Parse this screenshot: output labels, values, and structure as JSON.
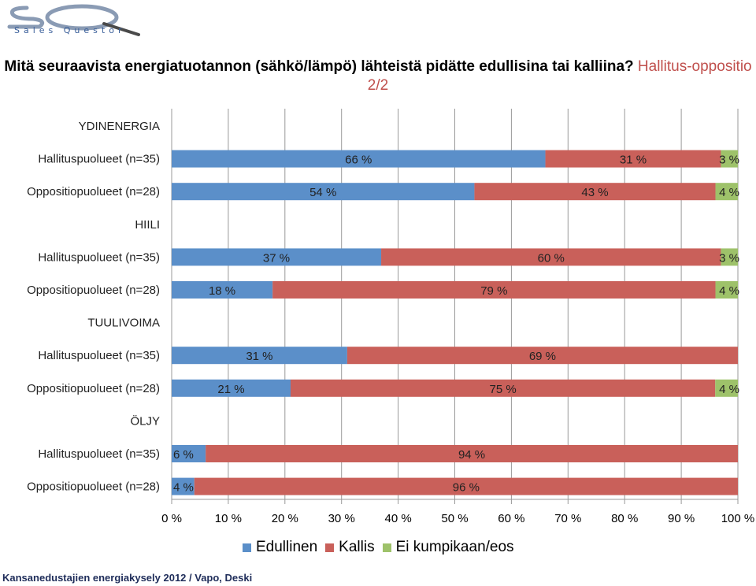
{
  "brand": {
    "logo_text": "SQ",
    "logo_subtitle": "Sales Questor"
  },
  "title": {
    "part1": "Mitä seuraavista energiatuotannon (sähkö/lämpö) lähteistä pidätte edullisina tai kalliina?",
    "part2": "Hallitus-oppositio 2/2"
  },
  "colors": {
    "Edullinen": "#5b8fc9",
    "Kallis": "#c9605a",
    "Ei kumpikaan/eos": "#9ec26a",
    "grid": "#999999"
  },
  "chart_data": {
    "type": "bar",
    "orientation": "horizontal-stacked-100",
    "xlim": [
      0,
      100
    ],
    "x_ticks": [
      "0 %",
      "10 %",
      "20 %",
      "30 %",
      "40 %",
      "50 %",
      "60 %",
      "70 %",
      "80 %",
      "90 %",
      "100 %"
    ],
    "series_names": [
      "Edullinen",
      "Kallis",
      "Ei kumpikaan/eos"
    ],
    "groups": [
      {
        "name": "YDINENERGIA",
        "rows": [
          {
            "label": "Hallituspuolueet (n=35)",
            "values": [
              66,
              31,
              3
            ],
            "labels": [
              "66 %",
              "31 %",
              "3 %"
            ]
          },
          {
            "label": "Oppositiopuolueet (n=28)",
            "values": [
              54,
              43,
              4
            ],
            "labels": [
              "54 %",
              "43 %",
              "4 %"
            ]
          }
        ]
      },
      {
        "name": "HIILI",
        "rows": [
          {
            "label": "Hallituspuolueet (n=35)",
            "values": [
              37,
              60,
              3
            ],
            "labels": [
              "37 %",
              "60 %",
              "3 %"
            ]
          },
          {
            "label": "Oppositiopuolueet (n=28)",
            "values": [
              18,
              79,
              4
            ],
            "labels": [
              "18 %",
              "79 %",
              "4 %"
            ]
          }
        ]
      },
      {
        "name": "TUULIVOIMA",
        "rows": [
          {
            "label": "Hallituspuolueet (n=35)",
            "values": [
              31,
              69,
              0
            ],
            "labels": [
              "31 %",
              "69 %",
              ""
            ]
          },
          {
            "label": "Oppositiopuolueet (n=28)",
            "values": [
              21,
              75,
              4
            ],
            "labels": [
              "21 %",
              "75 %",
              "4 %"
            ]
          }
        ]
      },
      {
        "name": "ÖLJY",
        "rows": [
          {
            "label": "Hallituspuolueet (n=35)",
            "values": [
              6,
              94,
              0
            ],
            "labels": [
              "6 %",
              "94 %",
              ""
            ]
          },
          {
            "label": "Oppositiopuolueet (n=28)",
            "values": [
              4,
              96,
              0
            ],
            "labels": [
              "4 %",
              "96 %",
              ""
            ]
          }
        ]
      }
    ],
    "legend": [
      "Edullinen",
      "Kallis",
      "Ei kumpikaan/eos"
    ],
    "legend_position": "bottom"
  },
  "footer": {
    "source": "Kansanedustajien energiakysely 2012 / Vapo, Deski"
  }
}
